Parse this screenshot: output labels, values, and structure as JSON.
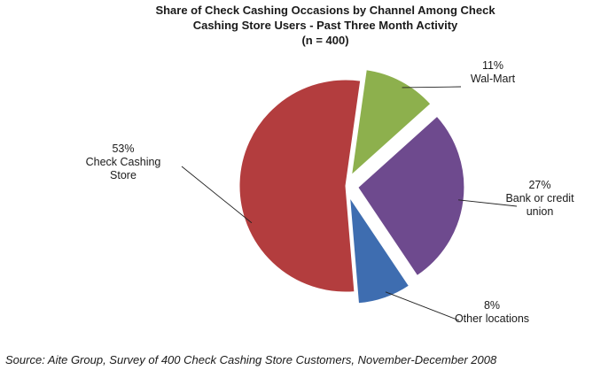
{
  "chart_data": {
    "type": "pie",
    "title": [
      "Share of Check Cashing Occasions by Channel Among Check",
      "Cashing Store Users - Past Three Month Activity",
      "(n = 400)"
    ],
    "slices": [
      {
        "name": "Wal-Mart",
        "label_lines": [
          "Wal-Mart"
        ],
        "value": 11,
        "value_label": "11%",
        "color": "#8db04d",
        "exploded": true
      },
      {
        "name": "Bank or credit union",
        "label_lines": [
          "Bank or credit",
          "union"
        ],
        "value": 27,
        "value_label": "27%",
        "color": "#6e4a8e",
        "exploded": true
      },
      {
        "name": "Other locations",
        "label_lines": [
          "Other locations"
        ],
        "value": 8,
        "value_label": "8%",
        "color": "#3e6db0",
        "exploded": true
      },
      {
        "name": "Check Cashing Store",
        "label_lines": [
          "Check Cashing",
          "Store"
        ],
        "value": 53,
        "value_label": "53%",
        "color": "#b33d3e",
        "exploded": false
      }
    ],
    "start_angle_deg": 8
  },
  "source": "Source: Aite Group, Survey of 400 Check Cashing Store Customers, November-December 2008"
}
